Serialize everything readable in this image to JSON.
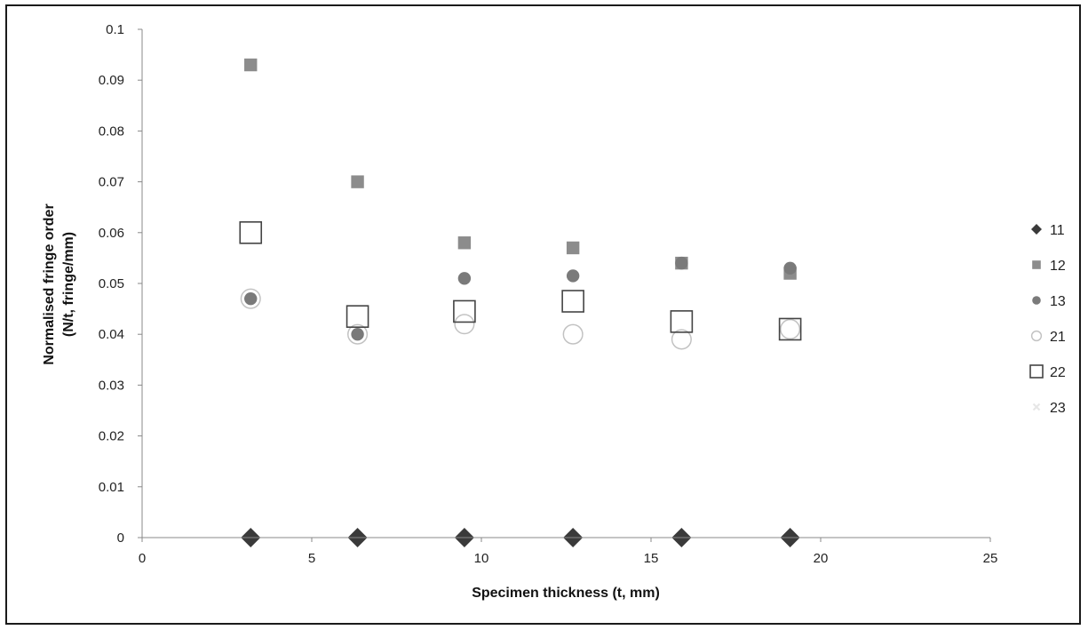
{
  "chart_data": {
    "type": "scatter",
    "title": "",
    "xlabel": "Specimen thickness (t, mm)",
    "ylabel_lines": [
      "Normalised fringe order",
      "(N/t, fringe/mm)"
    ],
    "xlim": [
      0,
      25
    ],
    "ylim": [
      0,
      0.1
    ],
    "x_ticks": [
      0,
      5,
      10,
      15,
      20,
      25
    ],
    "x_tick_labels": [
      "0",
      "5",
      "10",
      "15",
      "20",
      "25"
    ],
    "y_ticks": [
      0,
      0.01,
      0.02,
      0.03,
      0.04,
      0.05,
      0.06,
      0.07,
      0.08,
      0.09,
      0.1
    ],
    "y_tick_labels": [
      "0",
      "0.01",
      "0.02",
      "0.03",
      "0.04",
      "0.05",
      "0.06",
      "0.07",
      "0.08",
      "0.09",
      "0.1"
    ],
    "grid": false,
    "legend_position": "right",
    "series": [
      {
        "name": "11",
        "marker": "diamond",
        "color": "#3a3a3a",
        "x": [
          3.2,
          6.35,
          9.5,
          12.7,
          15.9,
          19.1
        ],
        "y": [
          0,
          0,
          0,
          0,
          0,
          0
        ]
      },
      {
        "name": "12",
        "marker": "square",
        "color": "#8c8c8c",
        "x": [
          3.2,
          6.35,
          9.5,
          12.7,
          15.9,
          19.1
        ],
        "y": [
          0.093,
          0.07,
          0.058,
          0.057,
          0.054,
          0.052
        ]
      },
      {
        "name": "13",
        "marker": "circle",
        "color": "#7a7a7a",
        "x": [
          3.2,
          6.35,
          9.5,
          12.7,
          15.9,
          19.1
        ],
        "y": [
          0.047,
          0.04,
          0.051,
          0.0515,
          0.054,
          0.053
        ]
      },
      {
        "name": "21",
        "marker": "circle-open",
        "color": "#c2c2c2",
        "x": [
          3.2,
          6.35,
          9.5,
          12.7,
          15.9,
          19.1
        ],
        "y": [
          0.047,
          0.04,
          0.042,
          0.04,
          0.039,
          0.041
        ]
      },
      {
        "name": "22",
        "marker": "square-open",
        "color": "#444444",
        "x": [
          3.2,
          6.35,
          9.5,
          12.7,
          15.9,
          19.1
        ],
        "y": [
          0.06,
          0.0435,
          0.0445,
          0.0465,
          0.0425,
          0.041
        ]
      },
      {
        "name": "23",
        "marker": "cross",
        "color": "#e6e6e6",
        "x": [
          3.2,
          6.35,
          9.5,
          12.7,
          15.9,
          19.1
        ],
        "y": [
          0.093,
          0.07,
          0.058,
          0.057,
          0.054,
          0.052
        ]
      }
    ]
  }
}
